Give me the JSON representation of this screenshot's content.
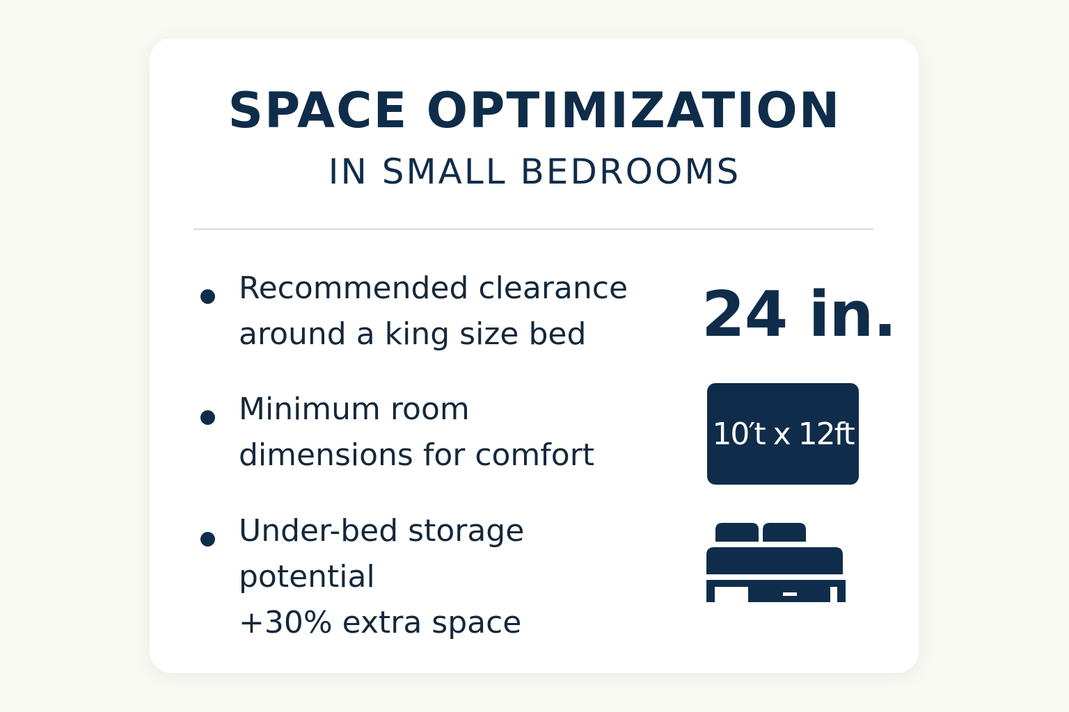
{
  "header": {
    "title": "SPACE OPTIMIZATION",
    "subtitle": "IN SMALL BEDROOMS"
  },
  "items": [
    {
      "lines": [
        "Recommended clearance",
        "around a king size bed"
      ],
      "value": "24 in."
    },
    {
      "lines": [
        "Minimum room",
        "dimensions for comfort"
      ],
      "value": "10′t x 12ft"
    },
    {
      "lines": [
        "Under-bed storage",
        "potential",
        "+30% extra space"
      ],
      "icon": "bed-with-drawer-icon"
    }
  ],
  "colors": {
    "primary": "#0f2d4a",
    "background": "#f9f9f4",
    "card": "#ffffff"
  }
}
